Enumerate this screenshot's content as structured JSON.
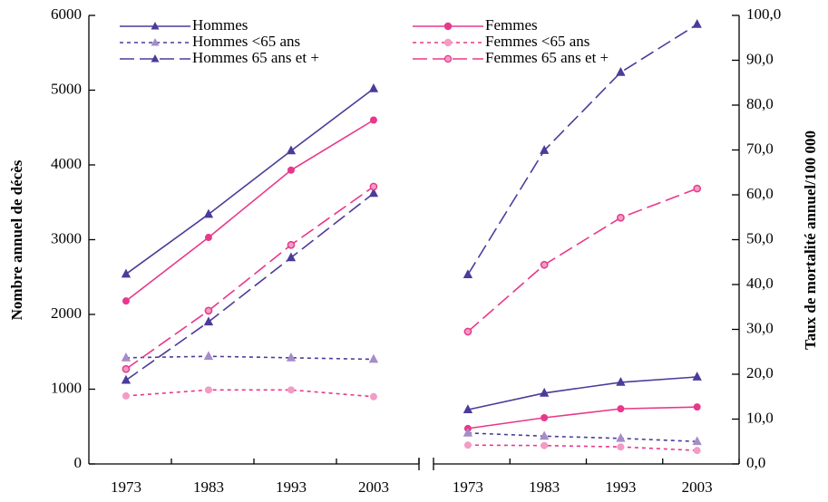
{
  "chart_data": [
    {
      "type": "line",
      "y_label": "Nombre annuel de décès",
      "categories": [
        "1973",
        "1983",
        "1993",
        "2003"
      ],
      "ylim": [
        0,
        6000
      ],
      "yticks": [
        0,
        1000,
        2000,
        3000,
        4000,
        5000,
        6000
      ],
      "series": [
        {
          "name": "Hommes",
          "color": "#4b3b9a",
          "marker_color": "#4b3b9a",
          "dash": "solid",
          "marker": "triangle",
          "values": [
            2540,
            3340,
            4190,
            5020
          ]
        },
        {
          "name": "Femmes",
          "color": "#e8388a",
          "marker_color": "#e8388a",
          "dash": "solid",
          "marker": "circle",
          "values": [
            2180,
            3030,
            3930,
            4600
          ]
        },
        {
          "name": "Hommes <65 ans",
          "color": "#4b3b9a",
          "marker_color": "#a68cc9",
          "dash": "dotted",
          "marker": "triangle",
          "values": [
            1420,
            1440,
            1420,
            1400
          ]
        },
        {
          "name": "Femmes <65 ans",
          "color": "#e8388a",
          "marker_color": "#f29cc6",
          "dash": "dotted",
          "marker": "circle",
          "values": [
            910,
            990,
            990,
            900
          ]
        },
        {
          "name": "Hommes 65 ans et +",
          "color": "#4b3b9a",
          "marker_color": "#4b3b9a",
          "dash": "dashed",
          "marker": "triangle",
          "values": [
            1120,
            1900,
            2760,
            3620
          ]
        },
        {
          "name": "Femmes 65 ans et +",
          "color": "#e8388a",
          "marker_color": "#e8388a",
          "dash": "dashed",
          "marker": "ring",
          "values": [
            1270,
            2050,
            2930,
            3710
          ]
        }
      ]
    },
    {
      "type": "line",
      "y2_label": "Taux de mortalité annuel/100 000",
      "categories": [
        "1973",
        "1983",
        "1993",
        "2003"
      ],
      "y2lim": [
        0,
        100
      ],
      "y2ticks": [
        {
          "value": 0,
          "label": "0,0"
        },
        {
          "value": 10,
          "label": "10,0"
        },
        {
          "value": 20,
          "label": "20,0"
        },
        {
          "value": 30,
          "label": "30,0"
        },
        {
          "value": 40,
          "label": "40,0"
        },
        {
          "value": 50,
          "label": "50,0"
        },
        {
          "value": 60,
          "label": "60,0"
        },
        {
          "value": 70,
          "label": "70,0"
        },
        {
          "value": 80,
          "label": "80,0"
        },
        {
          "value": 90,
          "label": "90,0"
        },
        {
          "value": 100,
          "label": "100,0"
        }
      ],
      "series": [
        {
          "color": "#4b3b9a",
          "marker_color": "#4b3b9a",
          "dash": "solid",
          "marker": "triangle",
          "axis": "y2",
          "values": [
            12.1,
            15.8,
            18.2,
            19.4
          ]
        },
        {
          "color": "#e8388a",
          "marker_color": "#e8388a",
          "dash": "solid",
          "marker": "circle",
          "axis": "y2",
          "values": [
            7.9,
            10.3,
            12.3,
            12.7
          ]
        },
        {
          "color": "#4b3b9a",
          "marker_color": "#a68cc9",
          "dash": "dotted",
          "marker": "triangle",
          "axis": "y2",
          "values": [
            6.9,
            6.2,
            5.7,
            5.0
          ]
        },
        {
          "color": "#e8388a",
          "marker_color": "#f29cc6",
          "dash": "dotted",
          "marker": "circle",
          "axis": "y2",
          "values": [
            4.2,
            4.1,
            3.8,
            3.0
          ]
        },
        {
          "color": "#4b3b9a",
          "marker_color": "#4b3b9a",
          "dash": "dashed",
          "marker": "triangle",
          "axis": "y2",
          "values": [
            42.2,
            69.9,
            87.3,
            98.0
          ]
        },
        {
          "color": "#e8388a",
          "marker_color": "#e8388a",
          "dash": "dashed",
          "marker": "ring",
          "axis": "y2",
          "values": [
            29.5,
            44.4,
            54.9,
            61.4
          ]
        }
      ]
    }
  ]
}
